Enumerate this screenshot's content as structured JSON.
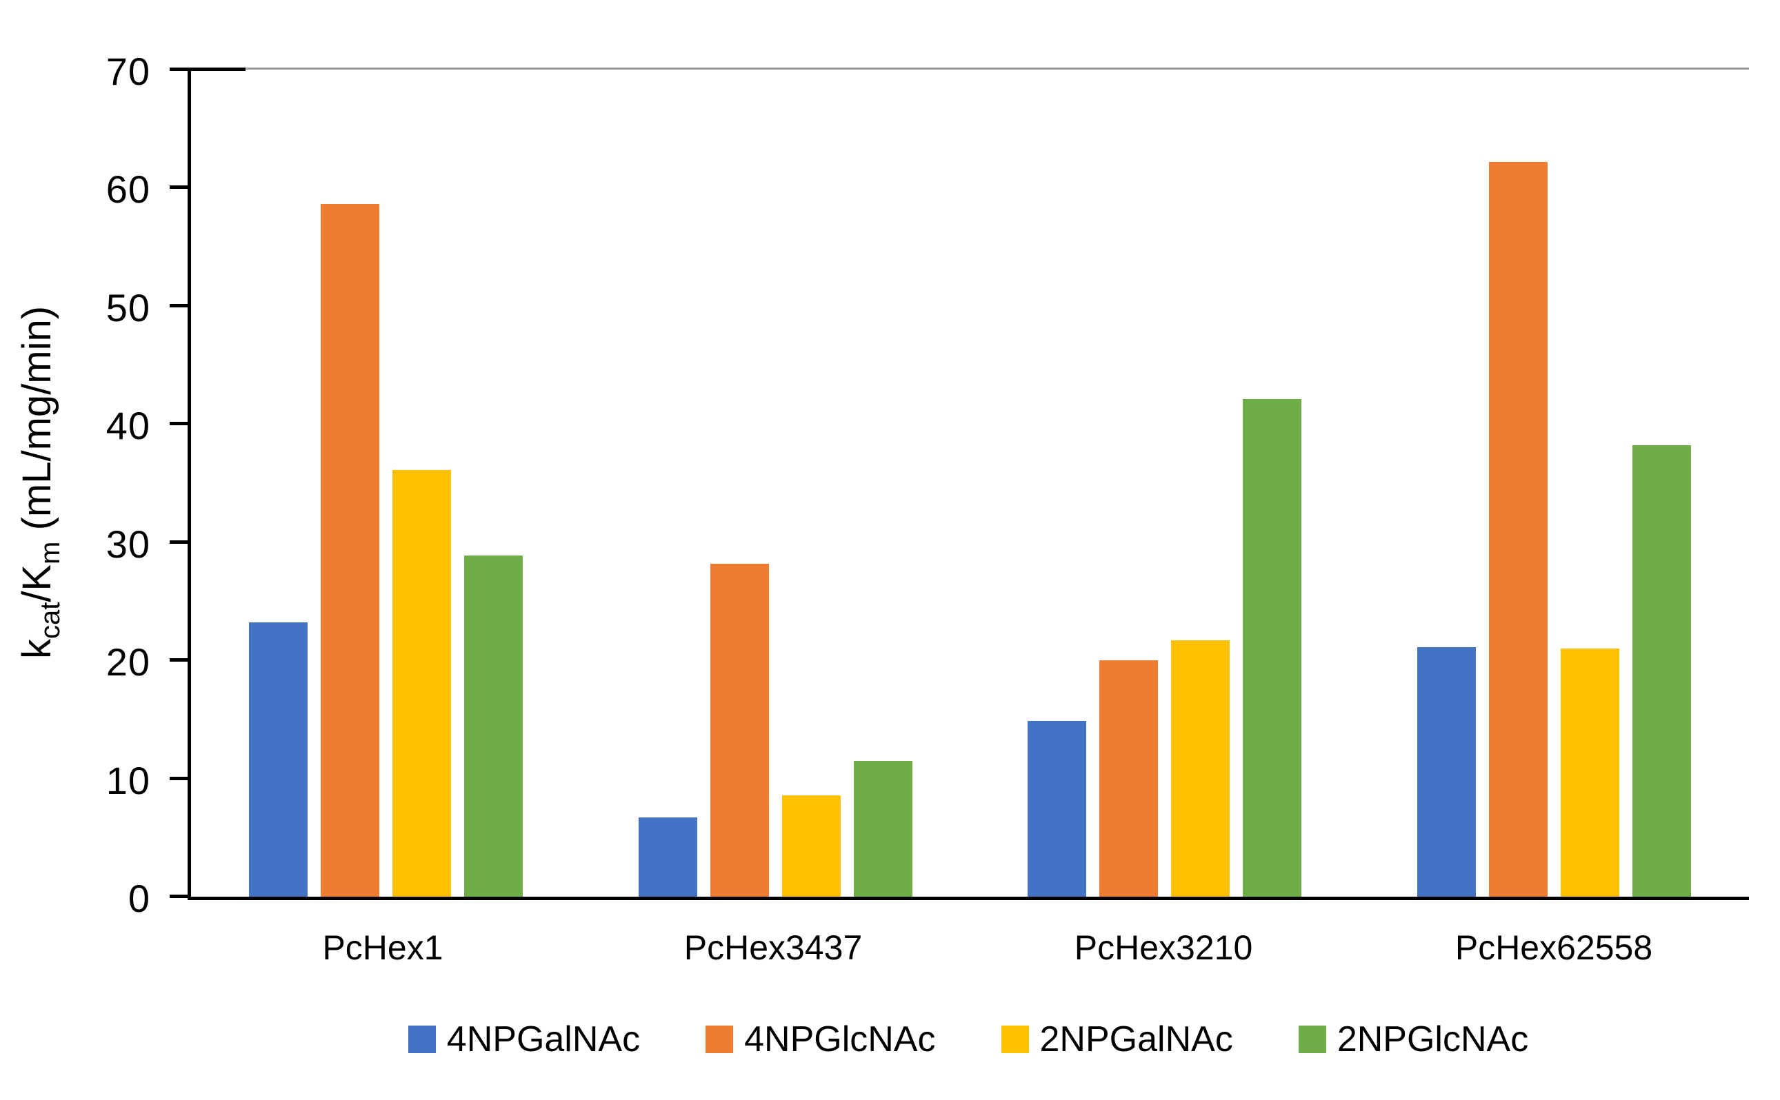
{
  "chart_data": {
    "type": "bar",
    "title": "",
    "categories": [
      "PcHex1",
      "PcHex3437",
      "PcHex3210",
      "PcHex62558"
    ],
    "series": [
      {
        "name": "4NPGalNAc",
        "color": "#4472C4",
        "values": [
          23.2,
          6.7,
          14.9,
          21.1
        ]
      },
      {
        "name": "4NPGlcNAc",
        "color": "#ED7D31",
        "values": [
          58.6,
          28.2,
          20.0,
          62.2
        ]
      },
      {
        "name": "2NPGalNAc",
        "color": "#FFC000",
        "values": [
          36.1,
          8.6,
          21.7,
          21.0
        ]
      },
      {
        "name": "2NPGlcNAc",
        "color": "#70AD47",
        "values": [
          28.9,
          11.5,
          42.1,
          38.2
        ]
      }
    ],
    "xlabel": "",
    "ylabel_plain": "kcat/Km (mL/mg/min)",
    "ylabel_parts": [
      {
        "text": "k"
      },
      {
        "text": "cat",
        "sub": true
      },
      {
        "text": "/K"
      },
      {
        "text": "m",
        "sub": true
      },
      {
        "text": " (mL/mg/min)"
      }
    ],
    "ylim": [
      0,
      70
    ],
    "ytick_step": 10,
    "yticks": [
      0,
      10,
      20,
      30,
      40,
      50,
      60,
      70
    ],
    "grid": false,
    "legend_position": "bottom",
    "axis_color": "#000000",
    "plot_top_border_color": "#9C9C9C",
    "background_color": "#FFFFFF"
  }
}
